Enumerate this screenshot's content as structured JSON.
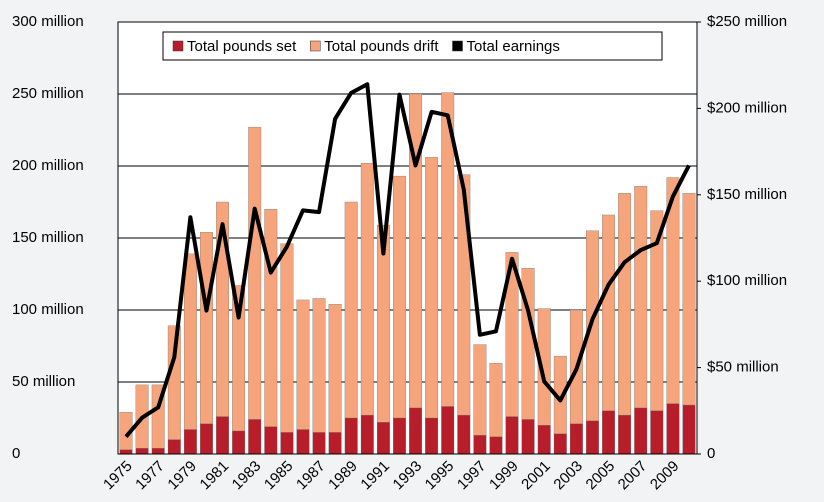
{
  "chart_data": {
    "type": "bar",
    "categories": [
      "1975",
      null,
      "1977",
      null,
      "1979",
      null,
      "1981",
      null,
      "1983",
      null,
      "1985",
      null,
      "1987",
      null,
      "1989",
      null,
      "1991",
      null,
      "1993",
      null,
      "1995",
      null,
      "1997",
      null,
      "1999",
      null,
      "2001",
      null,
      "2003",
      null,
      "2005",
      null,
      "2007",
      null,
      "2009",
      null
    ],
    "series": [
      {
        "name": "Total pounds set",
        "color": "#b81d2a",
        "values": [
          3000000,
          4000000,
          4000000,
          10000000,
          17000000,
          21000000,
          26000000,
          16000000,
          24000000,
          19000000,
          15000000,
          17000000,
          15000000,
          15000000,
          25000000,
          27000000,
          22000000,
          25000000,
          32000000,
          25000000,
          33000000,
          27000000,
          13000000,
          12000000,
          26000000,
          24000000,
          20000000,
          14000000,
          21000000,
          23000000,
          30000000,
          27000000,
          32000000,
          30000000,
          35000000,
          34000000
        ]
      },
      {
        "name": "Total pounds drift",
        "color": "#f5a47c",
        "values": [
          26000000,
          44000000,
          44000000,
          79000000,
          122000000,
          133000000,
          149000000,
          101000000,
          203000000,
          151000000,
          131000000,
          90000000,
          93000000,
          89000000,
          150000000,
          175000000,
          137000000,
          168000000,
          218000000,
          181000000,
          218000000,
          167000000,
          63000000,
          51000000,
          114000000,
          105000000,
          81000000,
          54000000,
          79000000,
          132000000,
          136000000,
          154000000,
          154000000,
          139000000,
          157000000,
          147000000
        ]
      },
      {
        "name": "Total earnings",
        "color": "#000000",
        "type": "line",
        "axis": "y2",
        "values": [
          10000000,
          21000000,
          27000000,
          56000000,
          137000000,
          83000000,
          133000000,
          79000000,
          142000000,
          105000000,
          120000000,
          141000000,
          140000000,
          194000000,
          209000000,
          214000000,
          116000000,
          208000000,
          167000000,
          198000000,
          196000000,
          153000000,
          69000000,
          71000000,
          113000000,
          83000000,
          42000000,
          31000000,
          49000000,
          78000000,
          98000000,
          111000000,
          118000000,
          122000000,
          149000000,
          167000000
        ]
      }
    ],
    "stacked": true,
    "ylim": [
      0,
      300000000
    ],
    "yticks": [
      0,
      {
        "value": 50000000,
        "label": "50 million"
      },
      {
        "value": 100000000,
        "label": "100 million"
      },
      {
        "value": 150000000,
        "label": "150 million"
      },
      {
        "value": 200000000,
        "label": "200 million"
      },
      {
        "value": 250000000,
        "label": "250 million"
      },
      {
        "value": 300000000,
        "label": "300 million"
      }
    ],
    "y2lim": [
      0,
      250000000
    ],
    "y2ticks": [
      0,
      {
        "value": 50000000,
        "label": "$50 million"
      },
      {
        "value": 100000000,
        "label": "$100 million"
      },
      {
        "value": 150000000,
        "label": "$150 million"
      },
      {
        "value": 200000000,
        "label": "$200 million"
      },
      {
        "value": 250000000,
        "label": "$250 million"
      }
    ],
    "grid": true,
    "legend": "top"
  }
}
